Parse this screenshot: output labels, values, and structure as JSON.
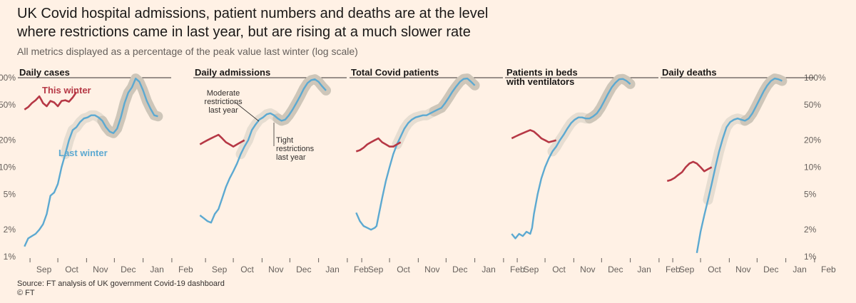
{
  "header": {
    "title_line1": "UK Covid hospital admissions, patient numbers and deaths are at the level",
    "title_line2": "where restrictions came in last year, but are rising at a much slower rate",
    "subtitle": "All metrics displayed as a percentage of the peak value last winter (log scale)"
  },
  "footer": {
    "source": "Source: FT analysis of UK government Covid-19 dashboard",
    "credit": "© FT"
  },
  "colors": {
    "last_winter": "#5CA9D1",
    "this_winter": "#B63845",
    "band": "#CEC6B9",
    "band_light": "#E6DDD1",
    "text": "#33302E",
    "axis": "#66605C"
  },
  "chart_data": {
    "type": "line",
    "scale": "log",
    "ylim": [
      1,
      100
    ],
    "y_ticks": [
      1,
      2,
      5,
      10,
      20,
      50,
      100
    ],
    "y_tick_labels": [
      "1%",
      "2%",
      "5%",
      "10%",
      "20%",
      "50%",
      "100%"
    ],
    "x_tick_labels": [
      "Sep",
      "Oct",
      "Nov",
      "Dec",
      "Jan",
      "Feb"
    ],
    "series_names": {
      "last_winter": "Last winter",
      "this_winter": "This winter"
    },
    "annotations": {
      "moderate": [
        "Moderate",
        "restrictions",
        "last year"
      ],
      "tight": [
        "Tight",
        "restrictions",
        "last year"
      ]
    },
    "panels": [
      {
        "title": "Daily cases",
        "last_winter": [
          [
            -21,
            1.3
          ],
          [
            -17,
            1.6
          ],
          [
            -13,
            1.7
          ],
          [
            -9,
            1.8
          ],
          [
            -5,
            2
          ],
          [
            -1,
            2.3
          ],
          [
            3,
            3
          ],
          [
            7,
            4.8
          ],
          [
            11,
            5.2
          ],
          [
            15,
            6.5
          ],
          [
            19,
            10
          ],
          [
            23,
            14
          ],
          [
            27,
            20
          ],
          [
            31,
            26
          ],
          [
            35,
            28
          ],
          [
            39,
            32
          ],
          [
            43,
            35
          ],
          [
            47,
            36
          ],
          [
            51,
            38
          ],
          [
            55,
            38
          ],
          [
            59,
            36
          ],
          [
            63,
            33
          ],
          [
            67,
            28
          ],
          [
            71,
            25
          ],
          [
            75,
            24
          ],
          [
            79,
            27
          ],
          [
            83,
            36
          ],
          [
            87,
            52
          ],
          [
            91,
            68
          ],
          [
            95,
            78
          ],
          [
            99,
            98
          ],
          [
            103,
            90
          ],
          [
            107,
            72
          ],
          [
            111,
            55
          ],
          [
            115,
            45
          ],
          [
            119,
            38
          ],
          [
            123,
            37
          ]
        ],
        "this_winter": [
          [
            -21,
            44
          ],
          [
            -17,
            47
          ],
          [
            -13,
            52
          ],
          [
            -9,
            56
          ],
          [
            -5,
            62
          ],
          [
            -3,
            57
          ],
          [
            -1,
            52
          ],
          [
            3,
            48
          ],
          [
            7,
            55
          ],
          [
            11,
            53
          ],
          [
            15,
            48
          ],
          [
            19,
            55
          ],
          [
            23,
            56
          ],
          [
            27,
            54
          ],
          [
            31,
            60
          ],
          [
            35,
            69
          ]
        ],
        "series_label": "Last winter",
        "series_label_this": "This winter",
        "annotation": null,
        "y_axis_right": false
      },
      {
        "title": "Daily admissions",
        "last_winter": [
          [
            -21,
            2.9
          ],
          [
            -17,
            2.7
          ],
          [
            -13,
            2.5
          ],
          [
            -9,
            2.4
          ],
          [
            -5,
            3
          ],
          [
            -1,
            3.4
          ],
          [
            3,
            4.5
          ],
          [
            7,
            6
          ],
          [
            11,
            7.5
          ],
          [
            15,
            9
          ],
          [
            19,
            11
          ],
          [
            23,
            14
          ],
          [
            27,
            17
          ],
          [
            31,
            20
          ],
          [
            35,
            26
          ],
          [
            39,
            30
          ],
          [
            43,
            34
          ],
          [
            47,
            36
          ],
          [
            51,
            39
          ],
          [
            55,
            40
          ],
          [
            59,
            38
          ],
          [
            63,
            35
          ],
          [
            67,
            33
          ],
          [
            71,
            34
          ],
          [
            75,
            38
          ],
          [
            79,
            44
          ],
          [
            83,
            52
          ],
          [
            87,
            62
          ],
          [
            91,
            75
          ],
          [
            95,
            87
          ],
          [
            99,
            94
          ],
          [
            103,
            96
          ],
          [
            107,
            90
          ],
          [
            111,
            80
          ],
          [
            115,
            72
          ]
        ],
        "this_winter": [
          [
            -21,
            18
          ],
          [
            -17,
            19
          ],
          [
            -13,
            20
          ],
          [
            -9,
            21
          ],
          [
            -5,
            22
          ],
          [
            -1,
            23
          ],
          [
            3,
            21
          ],
          [
            7,
            19
          ],
          [
            11,
            18
          ],
          [
            15,
            17
          ],
          [
            19,
            18
          ],
          [
            23,
            19
          ],
          [
            27,
            20
          ]
        ],
        "series_label": null,
        "series_label_this": null,
        "annotation": "both",
        "y_axis_right": false
      },
      {
        "title": "Total Covid patients",
        "last_winter": [
          [
            -21,
            3.1
          ],
          [
            -17,
            2.5
          ],
          [
            -13,
            2.2
          ],
          [
            -9,
            2.1
          ],
          [
            -5,
            2
          ],
          [
            -1,
            2.1
          ],
          [
            1,
            2.2
          ],
          [
            3,
            2.8
          ],
          [
            7,
            4.5
          ],
          [
            11,
            7
          ],
          [
            15,
            10
          ],
          [
            19,
            14
          ],
          [
            23,
            18
          ],
          [
            27,
            22
          ],
          [
            31,
            27
          ],
          [
            35,
            31
          ],
          [
            39,
            34
          ],
          [
            43,
            36
          ],
          [
            47,
            37
          ],
          [
            51,
            38
          ],
          [
            55,
            38
          ],
          [
            59,
            40
          ],
          [
            63,
            42
          ],
          [
            67,
            44
          ],
          [
            71,
            46
          ],
          [
            75,
            52
          ],
          [
            79,
            60
          ],
          [
            83,
            70
          ],
          [
            87,
            80
          ],
          [
            91,
            90
          ],
          [
            95,
            97
          ],
          [
            99,
            98
          ],
          [
            103,
            90
          ],
          [
            107,
            82
          ]
        ],
        "this_winter": [
          [
            -21,
            15
          ],
          [
            -17,
            15.5
          ],
          [
            -13,
            16.5
          ],
          [
            -9,
            18
          ],
          [
            -5,
            19
          ],
          [
            -1,
            20
          ],
          [
            3,
            21
          ],
          [
            7,
            19
          ],
          [
            11,
            18
          ],
          [
            15,
            17
          ],
          [
            19,
            17
          ],
          [
            23,
            18
          ],
          [
            27,
            19
          ]
        ],
        "series_label": null,
        "series_label_this": null,
        "annotation": null,
        "y_axis_right": false
      },
      {
        "title_line1": "Patients in beds",
        "title_line2": "with ventilators",
        "last_winter": [
          [
            -21,
            1.8
          ],
          [
            -17,
            1.6
          ],
          [
            -13,
            1.8
          ],
          [
            -9,
            1.7
          ],
          [
            -5,
            1.9
          ],
          [
            -1,
            1.8
          ],
          [
            1,
            2.1
          ],
          [
            3,
            3
          ],
          [
            7,
            5
          ],
          [
            11,
            7.5
          ],
          [
            15,
            10
          ],
          [
            19,
            12.5
          ],
          [
            23,
            15
          ],
          [
            27,
            17
          ],
          [
            31,
            20
          ],
          [
            35,
            23
          ],
          [
            39,
            27
          ],
          [
            43,
            31
          ],
          [
            47,
            34
          ],
          [
            51,
            36
          ],
          [
            55,
            36
          ],
          [
            59,
            35
          ],
          [
            63,
            35
          ],
          [
            67,
            37
          ],
          [
            71,
            40
          ],
          [
            75,
            46
          ],
          [
            79,
            55
          ],
          [
            83,
            66
          ],
          [
            87,
            78
          ],
          [
            91,
            88
          ],
          [
            95,
            96
          ],
          [
            99,
            97
          ],
          [
            103,
            92
          ],
          [
            107,
            85
          ]
        ],
        "this_winter": [
          [
            -21,
            21
          ],
          [
            -17,
            22
          ],
          [
            -13,
            23
          ],
          [
            -9,
            24
          ],
          [
            -5,
            25
          ],
          [
            -1,
            26
          ],
          [
            3,
            25
          ],
          [
            7,
            23
          ],
          [
            11,
            21
          ],
          [
            15,
            20
          ],
          [
            19,
            19
          ],
          [
            23,
            19.5
          ],
          [
            27,
            20
          ]
        ],
        "series_label": null,
        "series_label_this": null,
        "annotation": null,
        "y_axis_right": false
      },
      {
        "title": "Daily deaths",
        "last_winter": [
          [
            11,
            1.1
          ],
          [
            15,
            1.9
          ],
          [
            19,
            2.9
          ],
          [
            23,
            4.3
          ],
          [
            27,
            6.5
          ],
          [
            31,
            10
          ],
          [
            35,
            15
          ],
          [
            39,
            21
          ],
          [
            43,
            28
          ],
          [
            47,
            32
          ],
          [
            51,
            34
          ],
          [
            55,
            35
          ],
          [
            59,
            34
          ],
          [
            63,
            33
          ],
          [
            67,
            35
          ],
          [
            71,
            40
          ],
          [
            75,
            48
          ],
          [
            79,
            58
          ],
          [
            83,
            70
          ],
          [
            87,
            82
          ],
          [
            91,
            92
          ],
          [
            95,
            98
          ],
          [
            99,
            96
          ],
          [
            103,
            92
          ]
        ],
        "this_winter": [
          [
            -21,
            7
          ],
          [
            -17,
            7.2
          ],
          [
            -13,
            7.6
          ],
          [
            -9,
            8.2
          ],
          [
            -5,
            8.8
          ],
          [
            -1,
            10
          ],
          [
            3,
            11
          ],
          [
            7,
            11.5
          ],
          [
            11,
            11
          ],
          [
            15,
            10
          ],
          [
            19,
            9
          ],
          [
            23,
            9.5
          ],
          [
            27,
            10
          ]
        ],
        "series_label": null,
        "series_label_this": null,
        "annotation": null,
        "y_axis_right": true
      }
    ]
  }
}
